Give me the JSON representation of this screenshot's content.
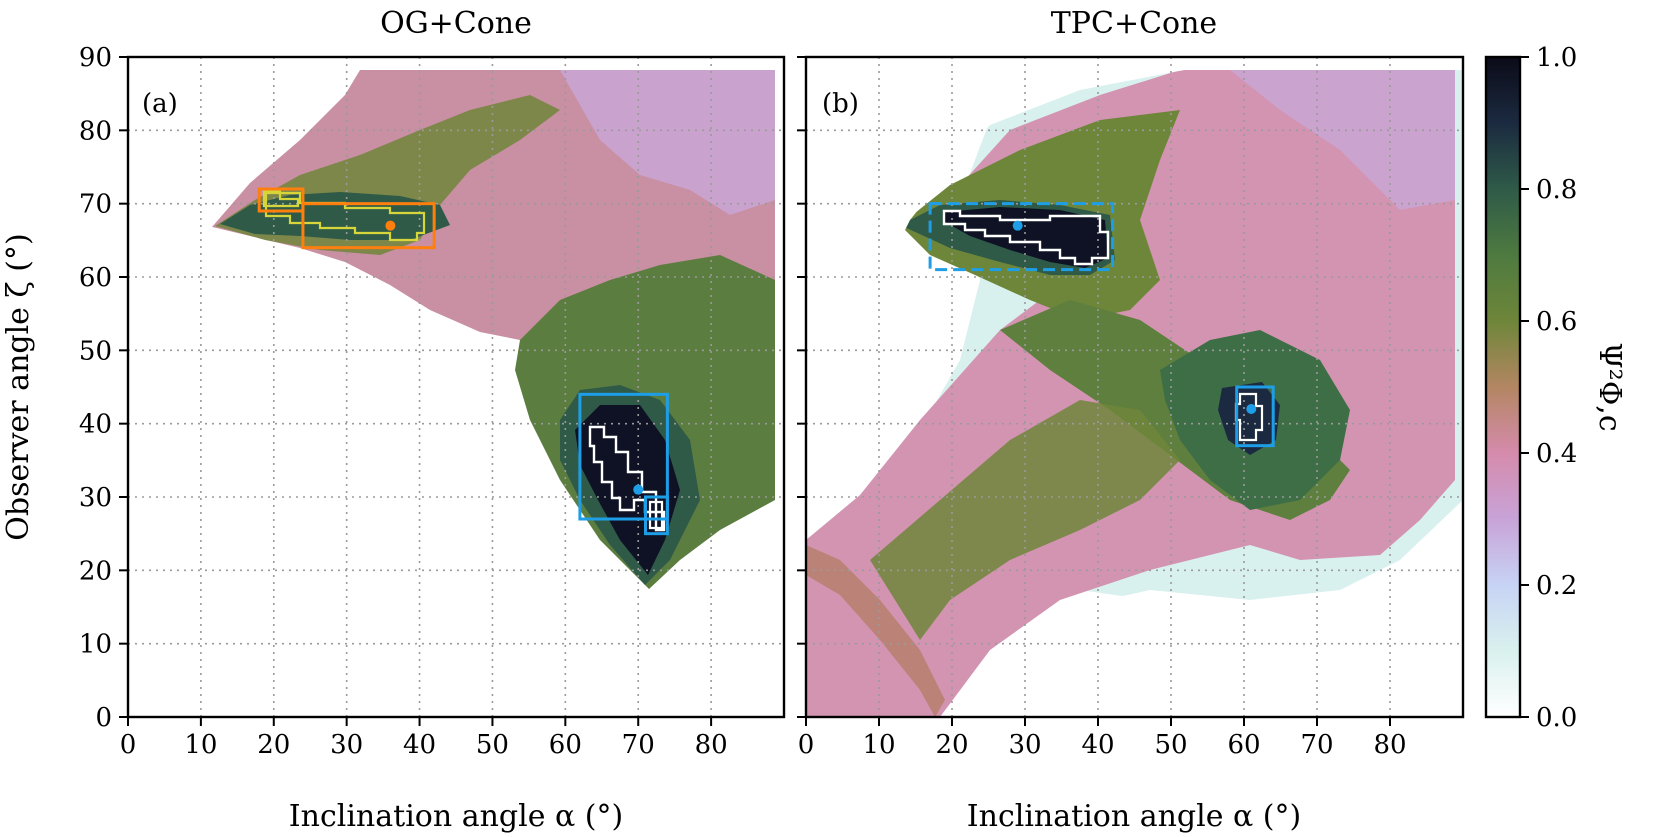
{
  "chart_data": [
    {
      "id": "left",
      "type": "heatmap",
      "title": "OG+Cone",
      "panel_label": "(a)",
      "xlabel": "Inclination angle α (°)",
      "ylabel": "Observer angle ζ (°)",
      "xlim": [
        0,
        90
      ],
      "ylim": [
        0,
        90
      ],
      "xticks": [
        "0",
        "10",
        "20",
        "30",
        "40",
        "50",
        "60",
        "70",
        "80"
      ],
      "yticks": [
        "0",
        "10",
        "20",
        "30",
        "40",
        "50",
        "60",
        "70",
        "80",
        "90"
      ],
      "regions": [
        {
          "name": "upper-arc",
          "value": 0.45
        },
        {
          "name": "upper-ridge-green",
          "value": 0.6
        },
        {
          "name": "top-pale",
          "value": 0.3
        },
        {
          "name": "lower-lobe",
          "value": 0.75
        },
        {
          "name": "lower-core",
          "value": 0.95
        }
      ],
      "boxes": [
        {
          "color": "#ff7f0e",
          "style": "solid",
          "x": [
            18,
            24
          ],
          "y": [
            69,
            72
          ]
        },
        {
          "color": "#ff7f0e",
          "style": "solid",
          "x": [
            24,
            42
          ],
          "y": [
            64,
            70
          ]
        },
        {
          "color": "#1f9ee8",
          "style": "solid",
          "x": [
            62,
            74
          ],
          "y": [
            27,
            44
          ]
        },
        {
          "color": "#1f9ee8",
          "style": "solid",
          "x": [
            71,
            74
          ],
          "y": [
            25,
            30
          ]
        }
      ],
      "best_points": [
        {
          "x": 36,
          "y": 67,
          "color": "#ff7f0e"
        },
        {
          "x": 70,
          "y": 31,
          "color": "#1f9ee8"
        }
      ]
    },
    {
      "id": "right",
      "type": "heatmap",
      "title": "TPC+Cone",
      "panel_label": "(b)",
      "xlabel": "Inclination angle α (°)",
      "xlim": [
        0,
        90
      ],
      "ylim": [
        0,
        90
      ],
      "xticks": [
        "0",
        "10",
        "20",
        "30",
        "40",
        "50",
        "60",
        "70",
        "80"
      ],
      "regions": [
        {
          "name": "upper-wedge",
          "value": 0.45
        },
        {
          "name": "upper-core",
          "value": 0.95
        },
        {
          "name": "lower-band",
          "value": 0.4
        },
        {
          "name": "diagonal-green",
          "value": 0.6
        },
        {
          "name": "right-lobe",
          "value": 0.75
        },
        {
          "name": "right-core",
          "value": 0.95
        }
      ],
      "boxes": [
        {
          "color": "#1f9ee8",
          "style": "dashed",
          "x": [
            17,
            42
          ],
          "y": [
            61,
            70
          ]
        },
        {
          "color": "#1f9ee8",
          "style": "solid",
          "x": [
            59,
            64
          ],
          "y": [
            37,
            45
          ]
        }
      ],
      "best_points": [
        {
          "x": 29,
          "y": 67,
          "color": "#1f9ee8"
        },
        {
          "x": 61,
          "y": 42,
          "color": "#1f9ee8"
        }
      ]
    }
  ],
  "colorbar": {
    "label": "Ψ²Φ,c",
    "ticks": [
      "0.0",
      "0.2",
      "0.4",
      "0.6",
      "0.8",
      "1.0"
    ],
    "range": [
      0,
      1
    ]
  },
  "colors": {
    "v0": "#ffffff",
    "v01": "#d9f1ee",
    "v02": "#c7d3f4",
    "v03": "#c8a3d8",
    "v04": "#d58bac",
    "v05": "#b38662",
    "v06": "#6e8639",
    "v07": "#4e7a40",
    "v08": "#2f5a48",
    "v09": "#1b2a40",
    "v10": "#0b0b18"
  }
}
